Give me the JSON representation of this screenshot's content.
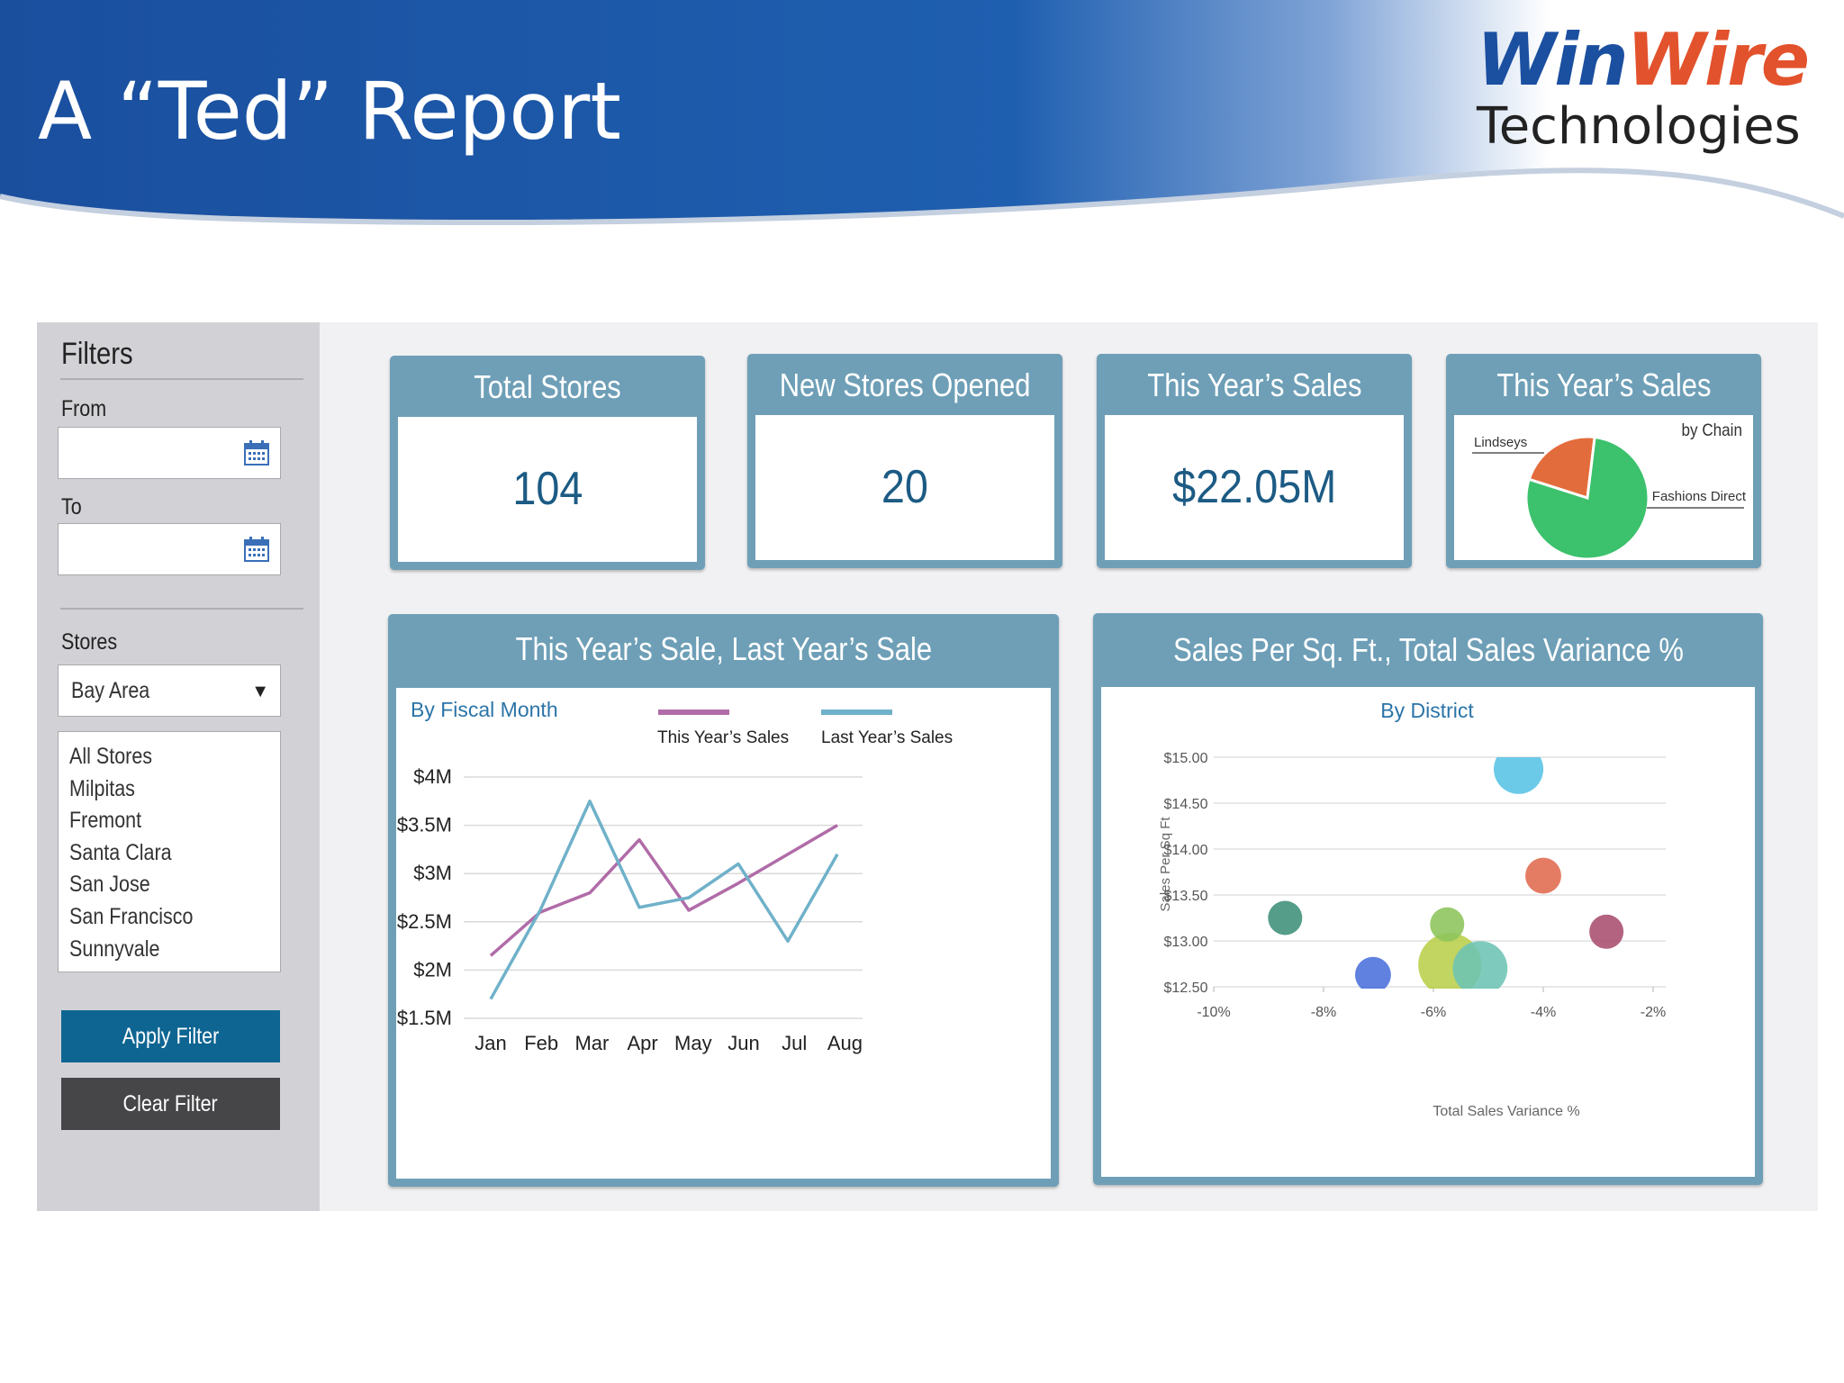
{
  "slide": {
    "title": "A “Ted” Report",
    "logo": {
      "word1": "Win",
      "word2": "Wire",
      "subtitle": "Technologies"
    }
  },
  "filters": {
    "heading": "Filters",
    "from_label": "From",
    "from_value": "",
    "to_label": "To",
    "to_value": "",
    "stores_label": "Stores",
    "stores_selected": "Bay Area",
    "store_list": [
      "All Stores",
      "Milpitas",
      "Fremont",
      "Santa Clara",
      "San Jose",
      "San Francisco",
      "Sunnyvale"
    ],
    "apply_label": "Apply Filter",
    "clear_label": "Clear Filter"
  },
  "kpis": [
    {
      "title": "Total Stores",
      "value": "104"
    },
    {
      "title": "New Stores Opened",
      "value": "20"
    },
    {
      "title": "This Year’s Sales",
      "value": "$22.05M"
    }
  ],
  "colors": {
    "banner_dark": "#1a4f9e",
    "card_header": "#6e9fb7",
    "kpi_value": "#1c5b84",
    "apply_button": "#0e6592",
    "clear_button": "#464649",
    "this_year_line": "#b06ca8",
    "last_year_line": "#6fb1c9",
    "subtitle_blue": "#2b74a8"
  },
  "chart_data": [
    {
      "type": "pie",
      "title": "This Year’s Sales",
      "subtitle": "by Chain",
      "labels": [
        "Lindseys",
        "Fashions Direct"
      ],
      "values": [
        22,
        78
      ],
      "colors": [
        "#e36c3c",
        "#3cc16c"
      ]
    },
    {
      "type": "line",
      "title": "This Year’s Sale, Last Year’s Sale",
      "subtitle": "By Fiscal Month",
      "categories": [
        "Jan",
        "Feb",
        "Mar",
        "Apr",
        "May",
        "Jun",
        "Jul",
        "Aug"
      ],
      "series": [
        {
          "name": "This Year’s Sales",
          "color": "#b06ca8",
          "values": [
            2.15,
            2.6,
            2.8,
            3.35,
            2.62,
            2.9,
            3.2,
            3.5
          ]
        },
        {
          "name": "Last Year’s Sales",
          "color": "#6fb1c9",
          "values": [
            1.7,
            2.62,
            3.75,
            2.65,
            2.75,
            3.1,
            2.3,
            3.2
          ]
        }
      ],
      "y_ticks": [
        "$4M",
        "$3.5M",
        "$3M",
        "$2.5M",
        "$2M",
        "$1.5M"
      ],
      "y_tick_values": [
        4,
        3.5,
        3,
        2.5,
        2,
        1.5
      ],
      "ylim": [
        1.5,
        4
      ],
      "grid": true,
      "legend": "top-right"
    },
    {
      "type": "scatter",
      "title": "Sales Per Sq. Ft., Total Sales Variance %",
      "subtitle": "By District",
      "xlabel": "Total Sales Variance %",
      "ylabel": "Sales Per Sq Ft",
      "x_ticks": [
        "-10%",
        "-8%",
        "-6%",
        "-4%",
        "-2%"
      ],
      "x_tick_values": [
        -10,
        -8,
        -6,
        -4,
        -2
      ],
      "y_ticks": [
        "$15.00",
        "$14.50",
        "$14.00",
        "$13.50",
        "$13.00",
        "$12.50"
      ],
      "y_tick_values": [
        15,
        14.5,
        14,
        13.5,
        13,
        12.5
      ],
      "xlim": [
        -10,
        -2
      ],
      "ylim": [
        12.5,
        15
      ],
      "grid": true,
      "points": [
        {
          "x": -8.7,
          "y": 13.25,
          "size": 1.0,
          "color": "#3e8f78"
        },
        {
          "x": -7.1,
          "y": 12.63,
          "size": 1.05,
          "color": "#4a6fdc"
        },
        {
          "x": -5.7,
          "y": 12.74,
          "size": 1.85,
          "color": "#b9cf4a"
        },
        {
          "x": -5.75,
          "y": 13.18,
          "size": 1.0,
          "color": "#8cc45a"
        },
        {
          "x": -5.15,
          "y": 12.7,
          "size": 1.6,
          "color": "#6cc4b4"
        },
        {
          "x": -4.45,
          "y": 14.87,
          "size": 1.45,
          "color": "#58c3e6"
        },
        {
          "x": -4.0,
          "y": 13.71,
          "size": 1.05,
          "color": "#e06a4e"
        },
        {
          "x": -2.85,
          "y": 13.1,
          "size": 1.0,
          "color": "#a84d6e"
        }
      ]
    }
  ]
}
